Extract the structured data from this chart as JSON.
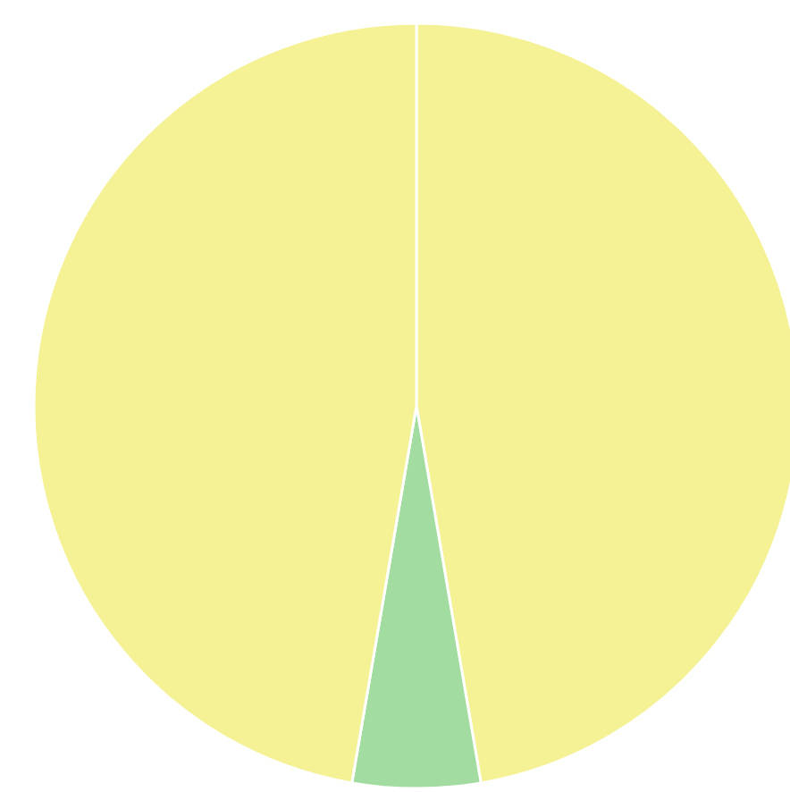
{
  "chart_data": {
    "type": "pie",
    "categories": [
      null,
      null,
      null
    ],
    "values": [
      47.3,
      5.4,
      47.3
    ],
    "colors": [
      "#f5f195",
      "#a3dca0",
      "#f5f195"
    ]
  }
}
